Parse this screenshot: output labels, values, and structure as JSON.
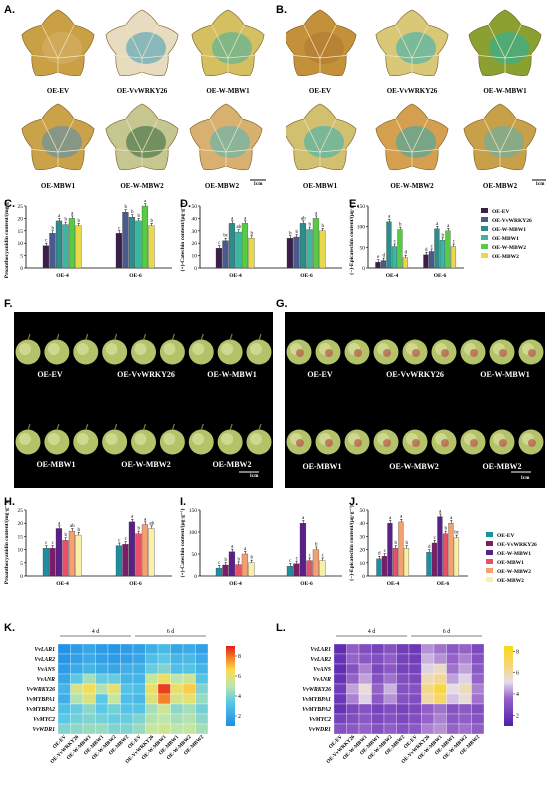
{
  "panel_labels": [
    "A.",
    "B.",
    "C.",
    "D.",
    "E.",
    "F.",
    "G.",
    "H.",
    "I.",
    "J.",
    "K.",
    "L."
  ],
  "leaf_panels": [
    {
      "captions_row1": [
        "OE-EV",
        "OE-VvWRKY26",
        "OE-W-MBW1"
      ],
      "captions_row2": [
        "OE-MBW1",
        "OE-W-MBW2",
        "OE-MBW2"
      ],
      "scale": "1cm"
    },
    {
      "captions_row1": [
        "OE-EV",
        "OE-VvWRKY26",
        "OE-W-MBW1"
      ],
      "captions_row2": [
        "OE-MBW1",
        "OE-W-MBW2",
        "OE-MBW2"
      ],
      "scale": "1cm"
    }
  ],
  "grape_panels": [
    {
      "captions_row1": [
        "OE-EV",
        "OE-VvWRKY26",
        "OE-W-MBW1"
      ],
      "captions_row2": [
        "OE-MBW1",
        "OE-W-MBW2",
        "OE-MBW2"
      ],
      "scale": "1cm"
    },
    {
      "captions_row1": [
        "OE-EV",
        "OE-VvWRKY26",
        "OE-W-MBW1"
      ],
      "captions_row2": [
        "OE-MBW1",
        "OE-W-MBW2",
        "OE-MBW2"
      ],
      "scale": "1cm"
    }
  ],
  "colors": {
    "leaf_series": [
      "#3b1f4a",
      "#4a5a8c",
      "#2e8c8a",
      "#3cb6a0",
      "#57cc43",
      "#e8d84a"
    ],
    "fruit_series": [
      "#1d8fa0",
      "#7a1c6a",
      "#5a1f88",
      "#e8506a",
      "#f5a070",
      "#f8f0a8"
    ]
  },
  "chart_data": [
    {
      "type": "bar",
      "panel": "C",
      "categories": [
        "OE-4",
        "OE-6"
      ],
      "ylabel": "Proanthocyanidin content/(mg·g⁻¹)",
      "ylim": [
        0,
        25
      ],
      "yticks": [
        0,
        5,
        10,
        15,
        20,
        25
      ],
      "series": [
        {
          "values": [
            9.0,
            14.0
          ],
          "letters": [
            "c",
            "c"
          ]
        },
        {
          "values": [
            14.0,
            22.5
          ],
          "letters": [
            "b",
            "b"
          ]
        },
        {
          "values": [
            19.0,
            20.5
          ],
          "letters": [
            "a",
            "b"
          ]
        },
        {
          "values": [
            17.5,
            19.0
          ],
          "letters": [
            "b",
            "b"
          ]
        },
        {
          "values": [
            20.0,
            25.0
          ],
          "letters": [
            "a",
            "a"
          ]
        },
        {
          "values": [
            17.0,
            17.0
          ],
          "letters": [
            "b",
            "b"
          ]
        }
      ]
    },
    {
      "type": "bar",
      "panel": "D",
      "categories": [
        "OE-4",
        "OE-6"
      ],
      "ylabel": "(+)-Catechin content/(μg·g⁻¹)",
      "ylim": [
        0,
        50
      ],
      "yticks": [
        0,
        10,
        20,
        30,
        40,
        50
      ],
      "series": [
        {
          "values": [
            16,
            24
          ],
          "letters": [
            "c",
            "b"
          ]
        },
        {
          "values": [
            22,
            25
          ],
          "letters": [
            "bc",
            "b"
          ]
        },
        {
          "values": [
            36,
            36
          ],
          "letters": [
            "a",
            "ab"
          ]
        },
        {
          "values": [
            29,
            31
          ],
          "letters": [
            "ab",
            "b"
          ]
        },
        {
          "values": [
            36,
            40
          ],
          "letters": [
            "a",
            "a"
          ]
        },
        {
          "values": [
            24,
            30
          ],
          "letters": [
            "b",
            "b"
          ]
        }
      ]
    },
    {
      "type": "bar",
      "panel": "E",
      "categories": [
        "OE-4",
        "OE-6"
      ],
      "ylabel": "(−)-Epicatechin content/(μg·g⁻¹)",
      "ylim": [
        0,
        150
      ],
      "yticks": [
        0,
        50,
        100,
        150
      ],
      "series": [
        {
          "values": [
            14,
            32
          ],
          "letters": [
            "e",
            "d"
          ]
        },
        {
          "values": [
            18,
            40
          ],
          "letters": [
            "d",
            "c"
          ]
        },
        {
          "values": [
            112,
            95
          ],
          "letters": [
            "a",
            "a"
          ]
        },
        {
          "values": [
            52,
            67
          ],
          "letters": [
            "c",
            "b"
          ]
        },
        {
          "values": [
            93,
            90
          ],
          "letters": [
            "b",
            "a"
          ]
        },
        {
          "values": [
            25,
            52
          ],
          "letters": [
            "d",
            "c"
          ]
        }
      ]
    },
    {
      "type": "bar",
      "panel": "H",
      "categories": [
        "OE-4",
        "OE-6"
      ],
      "ylabel": "Proanthocyanidin content/(mg·g⁻¹)",
      "ylim": [
        0,
        25
      ],
      "yticks": [
        0,
        5,
        10,
        15,
        20,
        25
      ],
      "series": [
        {
          "values": [
            10.5,
            11.5
          ],
          "letters": [
            "c",
            "c"
          ]
        },
        {
          "values": [
            10.5,
            12.0
          ],
          "letters": [
            "c",
            "c"
          ]
        },
        {
          "values": [
            18.0,
            20.5
          ],
          "letters": [
            "a",
            "a"
          ]
        },
        {
          "values": [
            13.5,
            16.0
          ],
          "letters": [
            "b",
            "b"
          ]
        },
        {
          "values": [
            17.0,
            19.5
          ],
          "letters": [
            "ab",
            "a"
          ]
        },
        {
          "values": [
            15.5,
            18.0
          ],
          "letters": [
            "b",
            "ab"
          ]
        }
      ]
    },
    {
      "type": "bar",
      "panel": "I",
      "categories": [
        "OE-4",
        "OE-6"
      ],
      "ylabel": "(+)-Catechin content/(μg·g⁻¹)",
      "ylim": [
        0,
        150
      ],
      "yticks": [
        0,
        50,
        100,
        150
      ],
      "series": [
        {
          "values": [
            18,
            22
          ],
          "letters": [
            "c",
            "c"
          ]
        },
        {
          "values": [
            25,
            28
          ],
          "letters": [
            "b",
            "c"
          ]
        },
        {
          "values": [
            55,
            120
          ],
          "letters": [
            "a",
            "a"
          ]
        },
        {
          "values": [
            26,
            35
          ],
          "letters": [
            "b",
            "c"
          ]
        },
        {
          "values": [
            50,
            60
          ],
          "letters": [
            "a",
            "b"
          ]
        },
        {
          "values": [
            30,
            35
          ],
          "letters": [
            "b",
            "c"
          ]
        }
      ]
    },
    {
      "type": "bar",
      "panel": "J",
      "categories": [
        "OE-4",
        "OE-6"
      ],
      "ylabel": "(−)-Epicatechin content/(μg·g⁻¹)",
      "ylim": [
        0,
        50
      ],
      "yticks": [
        0,
        10,
        20,
        30,
        40,
        50
      ],
      "series": [
        {
          "values": [
            13,
            18
          ],
          "letters": [
            "d",
            "d"
          ]
        },
        {
          "values": [
            15,
            25
          ],
          "letters": [
            "c",
            "c"
          ]
        },
        {
          "values": [
            40,
            45
          ],
          "letters": [
            "a",
            "a"
          ]
        },
        {
          "values": [
            21,
            32
          ],
          "letters": [
            "b",
            "b"
          ]
        },
        {
          "values": [
            41,
            40
          ],
          "letters": [
            "a",
            "a"
          ]
        },
        {
          "values": [
            21,
            29
          ],
          "letters": [
            "b",
            "bc"
          ]
        }
      ]
    },
    {
      "type": "heatmap",
      "panel": "K",
      "groups": [
        "4 d",
        "6 d"
      ],
      "columns": [
        "OE-EV",
        "OE-VvWRKY26",
        "OE-W-MBW1",
        "OE-MBW1",
        "OE-W-MBW2",
        "OE-MBW2",
        "OE-EV",
        "OE-VvWRKY26",
        "OE-W-MBW1",
        "OE-MBW1",
        "OE-W-MBW2",
        "OE-MBW2"
      ],
      "rows": [
        "VvLAR1",
        "VvLAR2",
        "VvANS",
        "VvANR",
        "VvWRKY26",
        "VvMYBPA1",
        "VvMYBPA2",
        "VvMYC2",
        "VvWDR1"
      ],
      "colorbar_ticks": [
        2,
        4,
        6,
        8
      ],
      "vrange": [
        1,
        9
      ],
      "values": [
        [
          1.2,
          1.6,
          2.0,
          1.6,
          1.4,
          1.6,
          1.8,
          2.4,
          2.8,
          2.0,
          2.2,
          1.8
        ],
        [
          1.4,
          1.8,
          2.2,
          1.8,
          1.6,
          1.8,
          2.0,
          3.0,
          3.4,
          2.6,
          2.8,
          2.2
        ],
        [
          1.6,
          2.2,
          2.6,
          2.2,
          2.0,
          2.4,
          2.4,
          3.6,
          4.0,
          3.0,
          3.2,
          2.6
        ],
        [
          2.0,
          3.4,
          4.6,
          3.6,
          3.6,
          2.6,
          2.6,
          5.2,
          6.2,
          5.0,
          5.4,
          3.2
        ],
        [
          2.6,
          5.6,
          6.4,
          4.8,
          6.0,
          3.2,
          3.0,
          6.2,
          8.6,
          6.2,
          6.8,
          4.0
        ],
        [
          2.4,
          4.8,
          5.8,
          3.4,
          5.2,
          3.0,
          2.8,
          5.8,
          7.8,
          5.6,
          6.0,
          4.4
        ],
        [
          3.0,
          3.6,
          4.2,
          3.4,
          3.8,
          3.2,
          3.2,
          4.6,
          5.4,
          4.2,
          4.6,
          3.8
        ],
        [
          3.4,
          3.8,
          4.0,
          3.8,
          3.6,
          3.6,
          4.0,
          4.8,
          5.0,
          4.6,
          4.8,
          4.2
        ],
        [
          4.0,
          4.2,
          4.4,
          4.4,
          4.0,
          4.0,
          4.4,
          5.2,
          5.4,
          5.0,
          5.2,
          4.6
        ]
      ]
    },
    {
      "type": "heatmap",
      "panel": "L",
      "groups": [
        "4 d",
        "6 d"
      ],
      "columns": [
        "OE-EV",
        "OE-VvWRKY26",
        "OE-W-MBW1",
        "OE-MBW1",
        "OE-W-MBW2",
        "OE-MBW2",
        "OE-EV",
        "OE-VvWRKY26",
        "OE-W-MBW1",
        "OE-MBW1",
        "OE-W-MBW2",
        "OE-MBW2"
      ],
      "rows": [
        "VvLAR1",
        "VvLAR2",
        "VvANS",
        "VvANR",
        "VvWRKY26",
        "VvMYBPA1",
        "VvMYBPA2",
        "VvMYC2",
        "VvWDR1"
      ],
      "colorbar_ticks": [
        2,
        4,
        6,
        8
      ],
      "vrange": [
        1,
        8.5
      ],
      "values": [
        [
          1.6,
          3.4,
          2.8,
          2.4,
          3.0,
          2.2,
          2.0,
          4.2,
          3.8,
          3.2,
          3.6,
          2.6
        ],
        [
          1.8,
          3.6,
          3.2,
          2.8,
          3.4,
          2.4,
          2.2,
          4.6,
          4.2,
          3.6,
          4.0,
          3.0
        ],
        [
          1.6,
          3.0,
          4.0,
          2.6,
          3.2,
          2.4,
          2.4,
          5.0,
          5.6,
          3.8,
          4.4,
          3.2
        ],
        [
          1.8,
          3.6,
          4.4,
          3.0,
          3.8,
          2.8,
          2.6,
          5.8,
          6.2,
          4.4,
          5.0,
          3.6
        ],
        [
          2.2,
          4.4,
          5.4,
          3.6,
          4.6,
          3.0,
          3.0,
          6.4,
          7.6,
          5.2,
          5.8,
          4.0
        ],
        [
          2.0,
          4.0,
          5.0,
          3.2,
          4.2,
          3.0,
          2.8,
          6.0,
          7.0,
          4.8,
          5.4,
          3.8
        ],
        [
          1.8,
          2.6,
          3.0,
          2.4,
          2.8,
          2.4,
          2.6,
          3.4,
          3.8,
          3.0,
          3.2,
          2.8
        ],
        [
          2.4,
          2.8,
          3.2,
          2.6,
          3.0,
          2.6,
          2.8,
          3.6,
          4.0,
          3.2,
          3.4,
          3.0
        ],
        [
          3.0,
          3.2,
          3.6,
          3.0,
          3.4,
          3.0,
          3.2,
          4.0,
          4.2,
          3.6,
          3.8,
          3.4
        ]
      ]
    }
  ],
  "legend_top": [
    "OE-EV",
    "OE-VvWRKY26",
    "OE-W-MBW1",
    "OE-MBW1",
    "OE-W-MBW2",
    "OE-MBW2"
  ],
  "legend_bottom": [
    "OE-EV",
    "OE-VvWRKY26",
    "OE-W-MBW1",
    "OE-MBW1",
    "OE-W-MBW2",
    "OE-MBW2"
  ]
}
